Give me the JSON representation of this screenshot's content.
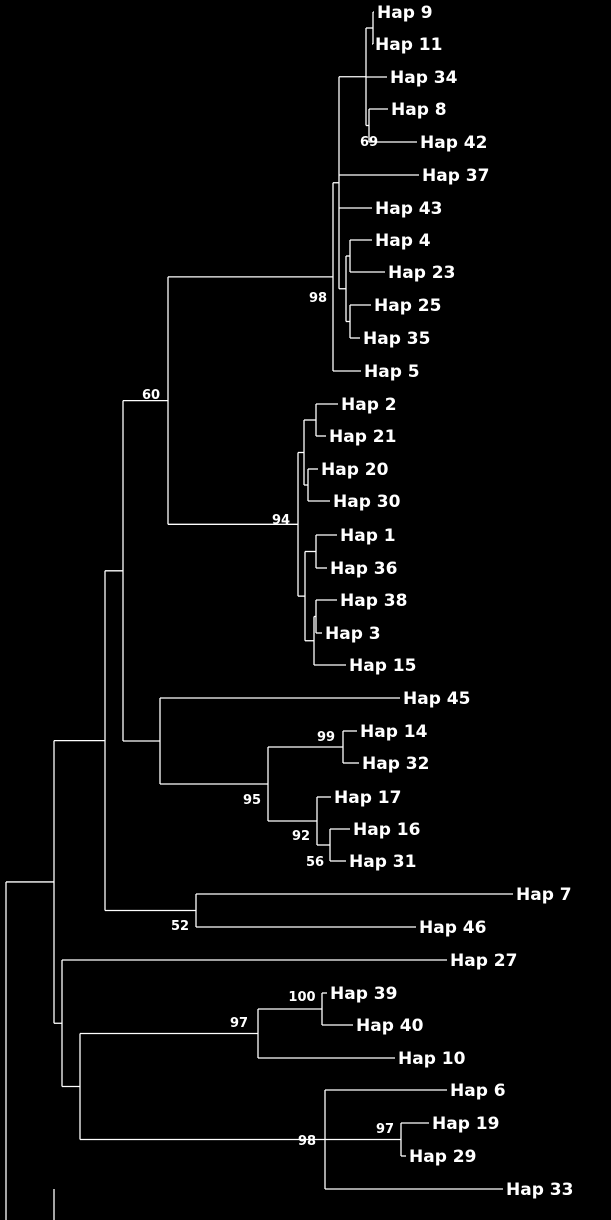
{
  "leaves": [
    "Hap 9",
    "Hap 11",
    "Hap 34",
    "Hap 8",
    "Hap 42",
    "Hap 37",
    "Hap 43",
    "Hap 4",
    "Hap 23",
    "Hap 25",
    "Hap 35",
    "Hap 5",
    "Hap 2",
    "Hap 21",
    "Hap 20",
    "Hap 30",
    "Hap 1",
    "Hap 36",
    "Hap 38",
    "Hap 3",
    "Hap 15",
    "Hap 45",
    "Hap 14",
    "Hap 32",
    "Hap 17",
    "Hap 16",
    "Hap 31",
    "Hap 7",
    "Hap 46",
    "Hap 27",
    "Hap 39",
    "Hap 40",
    "Hap 10",
    "Hap 6",
    "Hap 19",
    "Hap 29",
    "Hap 33"
  ],
  "support_values": [
    "69",
    "98",
    "60",
    "94",
    "99",
    "95",
    "92",
    "56",
    "52",
    "100",
    "97",
    "97",
    "98"
  ],
  "colors": {
    "background": "#000000",
    "lines": "#ffffff",
    "text": "#ffffff"
  }
}
